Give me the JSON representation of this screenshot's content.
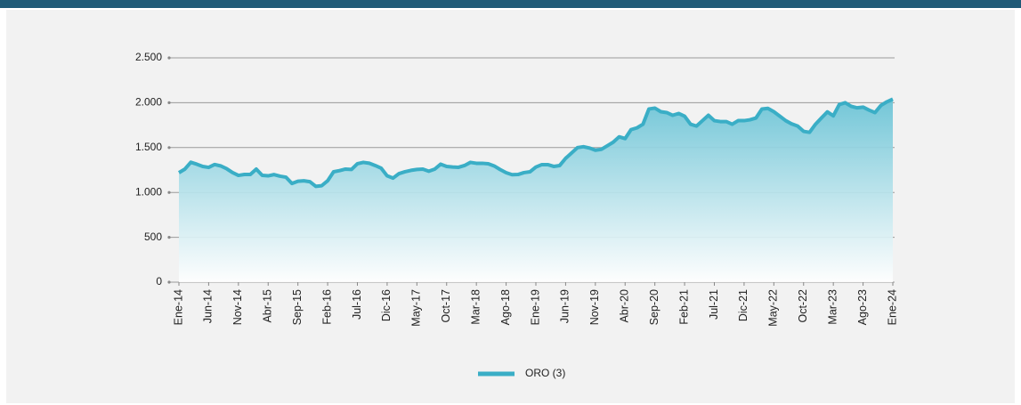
{
  "chart_data": {
    "type": "line",
    "categories": [
      "Ene-14",
      null,
      null,
      null,
      null,
      "Jun-14",
      null,
      null,
      null,
      null,
      "Nov-14",
      null,
      null,
      null,
      null,
      "Abr-15",
      null,
      null,
      null,
      null,
      "Sep-15",
      null,
      null,
      null,
      null,
      "Feb-16",
      null,
      null,
      null,
      null,
      "Jul-16",
      null,
      null,
      null,
      null,
      "Dic-16",
      null,
      null,
      null,
      null,
      "May-17",
      null,
      null,
      null,
      null,
      "Oct-17",
      null,
      null,
      null,
      null,
      "Mar-18",
      null,
      null,
      null,
      null,
      "Ago-18",
      null,
      null,
      null,
      null,
      "Ene-19",
      null,
      null,
      null,
      null,
      "Jun-19",
      null,
      null,
      null,
      null,
      "Nov-19",
      null,
      null,
      null,
      null,
      "Abr-20",
      null,
      null,
      null,
      null,
      "Sep-20",
      null,
      null,
      null,
      null,
      "Feb-21",
      null,
      null,
      null,
      null,
      "Jul-21",
      null,
      null,
      null,
      null,
      "Dic-21",
      null,
      null,
      null,
      null,
      "May-22",
      null,
      null,
      null,
      null,
      "Oct-22",
      null,
      null,
      null,
      null,
      "Mar-23",
      null,
      null,
      null,
      null,
      "Ago-23",
      null,
      null,
      null,
      null,
      "Ene-24"
    ],
    "series": [
      {
        "name": "ORO (3)",
        "color": "#3aaec6",
        "values": [
          1220,
          1260,
          1336,
          1315,
          1290,
          1279,
          1311,
          1296,
          1265,
          1222,
          1190,
          1200,
          1200,
          1260,
          1190,
          1185,
          1199,
          1181,
          1170,
          1100,
          1125,
          1130,
          1120,
          1068,
          1075,
          1130,
          1230,
          1243,
          1260,
          1256,
          1320,
          1335,
          1326,
          1300,
          1270,
          1185,
          1160,
          1210,
          1231,
          1246,
          1256,
          1260,
          1236,
          1260,
          1315,
          1290,
          1283,
          1280,
          1300,
          1335,
          1325,
          1325,
          1320,
          1295,
          1255,
          1220,
          1198,
          1200,
          1221,
          1230,
          1283,
          1310,
          1310,
          1290,
          1300,
          1380,
          1440,
          1500,
          1510,
          1495,
          1471,
          1480,
          1520,
          1560,
          1620,
          1600,
          1700,
          1720,
          1760,
          1930,
          1940,
          1900,
          1890,
          1860,
          1880,
          1850,
          1760,
          1740,
          1800,
          1860,
          1800,
          1790,
          1790,
          1760,
          1800,
          1800,
          1810,
          1830,
          1930,
          1937,
          1900,
          1850,
          1800,
          1764,
          1740,
          1681,
          1670,
          1760,
          1830,
          1898,
          1854,
          1980,
          2000,
          1960,
          1943,
          1951,
          1918,
          1890,
          1970,
          2010,
          2040
        ]
      }
    ],
    "ylim": [
      0,
      2500
    ],
    "yticks": [
      0,
      500,
      {
        "value": 1000,
        "label": "1.000"
      },
      {
        "value": 1500,
        "label": "1.500"
      },
      {
        "value": 2000,
        "label": "2.000"
      },
      {
        "value": 2500,
        "label": "2.500"
      }
    ],
    "grid": true,
    "legend": "bottom"
  }
}
